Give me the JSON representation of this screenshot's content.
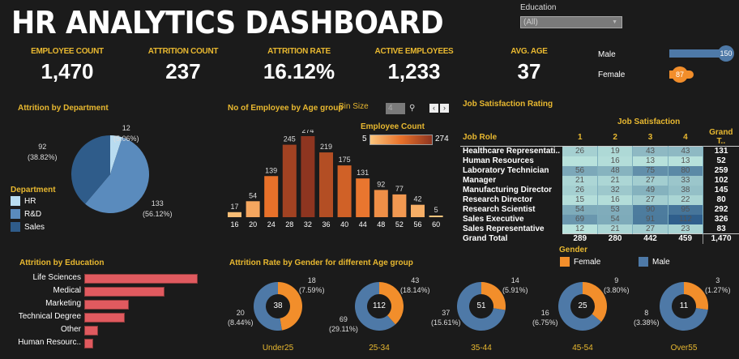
{
  "header": {
    "title": "HR ANALYTICS DASHBOARD"
  },
  "filter": {
    "label": "Education",
    "value": "(All)"
  },
  "kpis": [
    {
      "label": "EMPLOYEE COUNT",
      "value": "1,470"
    },
    {
      "label": "ATTRITION COUNT",
      "value": "237"
    },
    {
      "label": "ATTRITION RATE",
      "value": "16.12%"
    },
    {
      "label": "ACTIVE EMPLOYEES",
      "value": "1,233"
    },
    {
      "label": "AVG. AGE",
      "value": "37"
    }
  ],
  "gender_bars": [
    {
      "label": "Male",
      "value": "150",
      "color": "#4e79a7"
    },
    {
      "label": "Female",
      "value": "87",
      "color": "#f28e2b"
    }
  ],
  "department": {
    "title": "Attrition by Department",
    "legend_title": "Department",
    "slices": [
      {
        "name": "HR",
        "value": 12,
        "label": "12",
        "pct": "(5.06%)",
        "color": "#b9dcf0"
      },
      {
        "name": "R&D",
        "value": 133,
        "label": "133",
        "pct": "(56.12%)",
        "color": "#5a8bbd"
      },
      {
        "name": "Sales",
        "value": 92,
        "label": "92",
        "pct": "(38.82%)",
        "color": "#2f5c8a"
      }
    ]
  },
  "age_hist": {
    "title": "No of Employee by Age group",
    "bin_label": "Bin Size",
    "bin_value": "4",
    "legend_title": "Employee Count",
    "legend_min": "5",
    "legend_max": "274"
  },
  "job_satisfaction": {
    "title": "Job Satisfaction Rating",
    "header": "Job Satisfaction",
    "col_role": "Job Role",
    "cols": [
      "1",
      "2",
      "3",
      "4"
    ],
    "col_total": "Grand T..",
    "rows": [
      {
        "role": "Healthcare Representati..",
        "vals": [
          "26",
          "19",
          "43",
          "43"
        ],
        "total": "131"
      },
      {
        "role": "Human Resources",
        "vals": [
          "",
          "16",
          "13",
          "13"
        ],
        "total": "52"
      },
      {
        "role": "Laboratory Technician",
        "vals": [
          "56",
          "48",
          "75",
          "80"
        ],
        "total": "259"
      },
      {
        "role": "Manager",
        "vals": [
          "21",
          "21",
          "27",
          "33"
        ],
        "total": "102"
      },
      {
        "role": "Manufacturing Director",
        "vals": [
          "26",
          "32",
          "49",
          "38"
        ],
        "total": "145"
      },
      {
        "role": "Research Director",
        "vals": [
          "15",
          "16",
          "27",
          "22"
        ],
        "total": "80"
      },
      {
        "role": "Research Scientist",
        "vals": [
          "54",
          "53",
          "90",
          "95"
        ],
        "total": "292"
      },
      {
        "role": "Sales Executive",
        "vals": [
          "69",
          "54",
          "91",
          "112"
        ],
        "total": "326"
      },
      {
        "role": "Sales Representative",
        "vals": [
          "12",
          "21",
          "27",
          "23"
        ],
        "total": "83"
      }
    ],
    "grand": {
      "role": "Grand Total",
      "vals": [
        "289",
        "280",
        "442",
        "459"
      ],
      "total": "1,470"
    }
  },
  "education": {
    "title": "Attrition by Education"
  },
  "gender_age": {
    "title": "Attrition Rate  by Gender for different Age group",
    "legend_title": "Gender",
    "legend": [
      {
        "label": "Female",
        "color": "#f28e2b"
      },
      {
        "label": "Male",
        "color": "#4e79a7"
      }
    ]
  },
  "chart_data": [
    {
      "type": "pie",
      "title": "Attrition by Department",
      "categories": [
        "HR",
        "R&D",
        "Sales"
      ],
      "values": [
        12,
        133,
        92
      ],
      "percentages": [
        5.06,
        56.12,
        38.82
      ],
      "legend": "left"
    },
    {
      "type": "bar",
      "title": "No of Employee by Age group",
      "categories": [
        "16",
        "20",
        "24",
        "28",
        "32",
        "36",
        "40",
        "44",
        "48",
        "52",
        "56",
        "60"
      ],
      "values": [
        17,
        54,
        139,
        245,
        274,
        219,
        175,
        131,
        92,
        77,
        42,
        5
      ],
      "xlabel": "",
      "ylabel": "Employee Count"
    },
    {
      "type": "bar",
      "orientation": "horizontal",
      "title": "Attrition by Education",
      "categories": [
        "Life Sciences",
        "Medical",
        "Marketing",
        "Technical Degree",
        "Other",
        "Human Resourc.."
      ],
      "values": [
        89,
        63,
        35,
        32,
        11,
        7
      ]
    },
    {
      "type": "pie",
      "subtype": "donut",
      "title": "Attrition Rate  by Gender for different Age group",
      "groups": [
        {
          "name": "Under25",
          "total": "38",
          "female": 18,
          "female_pct": "(7.59%)",
          "male": 20,
          "male_pct": "(8.44%)"
        },
        {
          "name": "25-34",
          "total": "112",
          "female": 43,
          "female_pct": "(18.14%)",
          "male": 69,
          "male_pct": "(29.11%)"
        },
        {
          "name": "35-44",
          "total": "51",
          "female": 14,
          "female_pct": "(5.91%)",
          "male": 37,
          "male_pct": "(15.61%)"
        },
        {
          "name": "45-54",
          "total": "25",
          "female": 9,
          "female_pct": "(3.80%)",
          "male": 16,
          "male_pct": "(6.75%)"
        },
        {
          "name": "Over55",
          "total": "11",
          "female": 3,
          "female_pct": "(1.27%)",
          "male": 8,
          "male_pct": "(3.38%)"
        }
      ]
    }
  ]
}
